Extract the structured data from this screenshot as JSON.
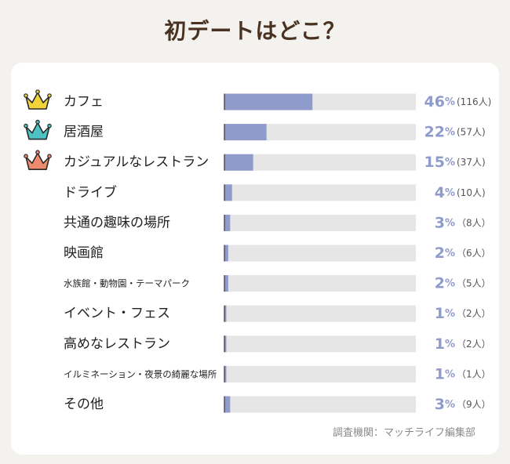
{
  "title": "初デートはどこ？",
  "source": "調査機関：マッチライフ編集部",
  "colors": {
    "background": "#f3f2ee",
    "card": "#ffffff",
    "title": "#4a3222",
    "bar_fill": "#8f9bcb",
    "bar_track": "#e6e6e6",
    "value_text": "#8f9bcb",
    "label_text": "#222222",
    "crown_gold": "#f0d43a",
    "crown_silver": "#4ec3c4",
    "crown_bronze": "#ee8a6e"
  },
  "icons": [
    "crown-gold-icon",
    "crown-silver-icon",
    "crown-bronze-icon"
  ],
  "chart_data": {
    "type": "bar",
    "orientation": "horizontal",
    "xlim": [
      0,
      100
    ],
    "categories": [
      "カフェ",
      "居酒屋",
      "カジュアルなレストラン",
      "ドライブ",
      "共通の趣味の場所",
      "映画館",
      "水族館・動物園・テーマパーク",
      "イベント・フェス",
      "高めなレストラン",
      "イルミネーション・夜景の綺麗な場所",
      "その他"
    ],
    "values": [
      46,
      22,
      15,
      4,
      3,
      2,
      2,
      1,
      1,
      1,
      3
    ],
    "value_labels": [
      "46",
      "22",
      "15",
      "4",
      "3",
      "2",
      "2",
      "1",
      "1",
      "1",
      "3"
    ],
    "unit": "%",
    "counts": [
      "(116人)",
      "(57人)",
      "(37人)",
      "(10人)",
      "（8人）",
      "（6人）",
      "（5人）",
      "（2人）",
      "（2人）",
      "（1人）",
      "（9人）"
    ]
  }
}
